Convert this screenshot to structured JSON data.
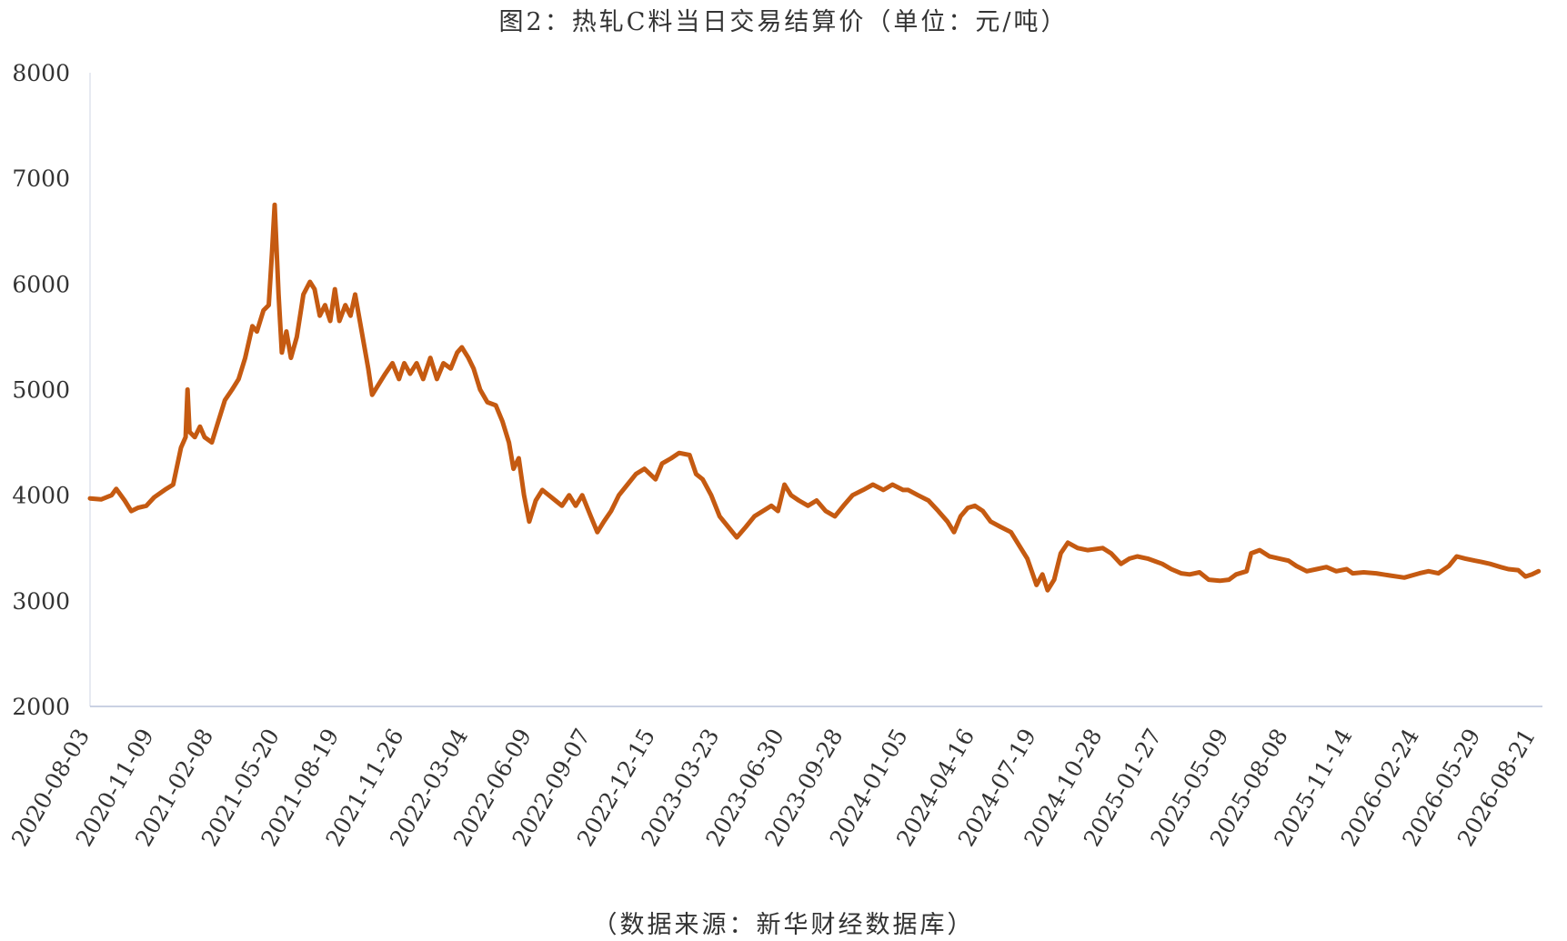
{
  "chart_data": {
    "type": "line",
    "title": "图2：热轧C料当日交易结算价（单位：元/吨）",
    "source": "（数据来源：新华财经数据库）",
    "ylim": [
      2000,
      8000
    ],
    "yticks": [
      "8000",
      "7000",
      "6000",
      "5000",
      "4000",
      "3000",
      "2000"
    ],
    "xlim": [
      "2020-08-03",
      "2026-08-31"
    ],
    "xticks": [
      "2020-08-03",
      "2020-11-09",
      "2021-02-08",
      "2021-05-20",
      "2021-08-19",
      "2021-11-26",
      "2022-03-04",
      "2022-06-09",
      "2022-09-07",
      "2022-12-15",
      "2023-03-23",
      "2023-06-30",
      "2023-09-28",
      "2024-01-05",
      "2024-04-16",
      "2024-07-19",
      "2024-10-28",
      "2025-01-27",
      "2025-05-09",
      "2025-08-08",
      "2025-11-14",
      "2026-02-24",
      "2026-05-29",
      "2026-08-21"
    ],
    "grid": false,
    "series_color": "#C55A11",
    "series": [
      {
        "points": [
          [
            "2020-08-03",
            3970
          ],
          [
            "2020-08-20",
            3960
          ],
          [
            "2020-09-05",
            4000
          ],
          [
            "2020-09-12",
            4060
          ],
          [
            "2020-09-25",
            3950
          ],
          [
            "2020-10-05",
            3850
          ],
          [
            "2020-10-15",
            3880
          ],
          [
            "2020-10-28",
            3900
          ],
          [
            "2020-11-09",
            3980
          ],
          [
            "2020-11-25",
            4050
          ],
          [
            "2020-12-08",
            4100
          ],
          [
            "2020-12-20",
            4450
          ],
          [
            "2020-12-27",
            4550
          ],
          [
            "2020-12-30",
            5000
          ],
          [
            "2021-01-02",
            4600
          ],
          [
            "2021-01-10",
            4550
          ],
          [
            "2021-01-18",
            4650
          ],
          [
            "2021-01-25",
            4550
          ],
          [
            "2021-02-05",
            4500
          ],
          [
            "2021-02-15",
            4700
          ],
          [
            "2021-02-25",
            4900
          ],
          [
            "2021-03-08",
            5000
          ],
          [
            "2021-03-18",
            5100
          ],
          [
            "2021-03-28",
            5300
          ],
          [
            "2021-04-08",
            5600
          ],
          [
            "2021-04-15",
            5550
          ],
          [
            "2021-04-25",
            5750
          ],
          [
            "2021-05-03",
            5800
          ],
          [
            "2021-05-08",
            6300
          ],
          [
            "2021-05-12",
            6750
          ],
          [
            "2021-05-18",
            5900
          ],
          [
            "2021-05-23",
            5350
          ],
          [
            "2021-05-30",
            5550
          ],
          [
            "2021-06-06",
            5300
          ],
          [
            "2021-06-15",
            5500
          ],
          [
            "2021-06-25",
            5900
          ],
          [
            "2021-07-05",
            6020
          ],
          [
            "2021-07-12",
            5950
          ],
          [
            "2021-07-20",
            5700
          ],
          [
            "2021-07-28",
            5800
          ],
          [
            "2021-08-05",
            5650
          ],
          [
            "2021-08-12",
            5950
          ],
          [
            "2021-08-19",
            5650
          ],
          [
            "2021-08-28",
            5800
          ],
          [
            "2021-09-05",
            5700
          ],
          [
            "2021-09-12",
            5900
          ],
          [
            "2021-09-22",
            5550
          ],
          [
            "2021-10-02",
            5200
          ],
          [
            "2021-10-08",
            4950
          ],
          [
            "2021-10-18",
            5050
          ],
          [
            "2021-10-28",
            5150
          ],
          [
            "2021-11-08",
            5250
          ],
          [
            "2021-11-18",
            5100
          ],
          [
            "2021-11-26",
            5250
          ],
          [
            "2021-12-05",
            5150
          ],
          [
            "2021-12-15",
            5250
          ],
          [
            "2021-12-25",
            5100
          ],
          [
            "2022-01-05",
            5300
          ],
          [
            "2022-01-15",
            5100
          ],
          [
            "2022-01-25",
            5250
          ],
          [
            "2022-02-05",
            5200
          ],
          [
            "2022-02-15",
            5350
          ],
          [
            "2022-02-22",
            5400
          ],
          [
            "2022-03-04",
            5300
          ],
          [
            "2022-03-12",
            5200
          ],
          [
            "2022-03-22",
            5000
          ],
          [
            "2022-04-02",
            4880
          ],
          [
            "2022-04-15",
            4850
          ],
          [
            "2022-04-25",
            4700
          ],
          [
            "2022-05-05",
            4500
          ],
          [
            "2022-05-12",
            4250
          ],
          [
            "2022-05-20",
            4350
          ],
          [
            "2022-05-28",
            4000
          ],
          [
            "2022-06-05",
            3750
          ],
          [
            "2022-06-15",
            3950
          ],
          [
            "2022-06-25",
            4050
          ],
          [
            "2022-07-05",
            4000
          ],
          [
            "2022-07-15",
            3950
          ],
          [
            "2022-07-25",
            3900
          ],
          [
            "2022-08-05",
            4000
          ],
          [
            "2022-08-15",
            3900
          ],
          [
            "2022-08-25",
            4000
          ],
          [
            "2022-09-07",
            3800
          ],
          [
            "2022-09-17",
            3650
          ],
          [
            "2022-09-27",
            3750
          ],
          [
            "2022-10-08",
            3850
          ],
          [
            "2022-10-20",
            4000
          ],
          [
            "2022-11-02",
            4100
          ],
          [
            "2022-11-15",
            4200
          ],
          [
            "2022-11-28",
            4250
          ],
          [
            "2022-12-15",
            4150
          ],
          [
            "2022-12-25",
            4300
          ],
          [
            "2023-01-08",
            4350
          ],
          [
            "2023-01-20",
            4400
          ],
          [
            "2023-02-05",
            4380
          ],
          [
            "2023-02-15",
            4200
          ],
          [
            "2023-02-25",
            4150
          ],
          [
            "2023-03-10",
            4000
          ],
          [
            "2023-03-23",
            3800
          ],
          [
            "2023-04-05",
            3700
          ],
          [
            "2023-04-18",
            3600
          ],
          [
            "2023-05-02",
            3700
          ],
          [
            "2023-05-15",
            3800
          ],
          [
            "2023-05-28",
            3850
          ],
          [
            "2023-06-10",
            3900
          ],
          [
            "2023-06-20",
            3850
          ],
          [
            "2023-06-30",
            4100
          ],
          [
            "2023-07-10",
            4000
          ],
          [
            "2023-07-22",
            3950
          ],
          [
            "2023-08-05",
            3900
          ],
          [
            "2023-08-18",
            3950
          ],
          [
            "2023-09-01",
            3850
          ],
          [
            "2023-09-15",
            3800
          ],
          [
            "2023-09-28",
            3900
          ],
          [
            "2023-10-12",
            4000
          ],
          [
            "2023-10-28",
            4050
          ],
          [
            "2023-11-12",
            4100
          ],
          [
            "2023-11-28",
            4050
          ],
          [
            "2023-12-12",
            4100
          ],
          [
            "2023-12-28",
            4050
          ],
          [
            "2024-01-05",
            4050
          ],
          [
            "2024-01-20",
            4000
          ],
          [
            "2024-02-05",
            3950
          ],
          [
            "2024-02-20",
            3850
          ],
          [
            "2024-03-05",
            3750
          ],
          [
            "2024-03-15",
            3650
          ],
          [
            "2024-03-25",
            3800
          ],
          [
            "2024-04-05",
            3880
          ],
          [
            "2024-04-16",
            3900
          ],
          [
            "2024-04-28",
            3850
          ],
          [
            "2024-05-10",
            3750
          ],
          [
            "2024-05-25",
            3700
          ],
          [
            "2024-06-10",
            3650
          ],
          [
            "2024-06-25",
            3500
          ],
          [
            "2024-07-05",
            3400
          ],
          [
            "2024-07-19",
            3150
          ],
          [
            "2024-07-28",
            3250
          ],
          [
            "2024-08-05",
            3100
          ],
          [
            "2024-08-15",
            3200
          ],
          [
            "2024-08-25",
            3450
          ],
          [
            "2024-09-05",
            3550
          ],
          [
            "2024-09-20",
            3500
          ],
          [
            "2024-10-05",
            3480
          ],
          [
            "2024-10-28",
            3500
          ],
          [
            "2024-11-10",
            3450
          ],
          [
            "2024-11-25",
            3350
          ],
          [
            "2024-12-08",
            3400
          ],
          [
            "2024-12-20",
            3420
          ],
          [
            "2025-01-05",
            3400
          ],
          [
            "2025-01-27",
            3350
          ],
          [
            "2025-02-10",
            3300
          ],
          [
            "2025-02-25",
            3260
          ],
          [
            "2025-03-10",
            3250
          ],
          [
            "2025-03-25",
            3270
          ],
          [
            "2025-04-08",
            3200
          ],
          [
            "2025-04-25",
            3190
          ],
          [
            "2025-05-09",
            3200
          ],
          [
            "2025-05-20",
            3250
          ],
          [
            "2025-06-05",
            3280
          ],
          [
            "2025-06-12",
            3450
          ],
          [
            "2025-06-25",
            3480
          ],
          [
            "2025-07-10",
            3420
          ],
          [
            "2025-07-25",
            3400
          ],
          [
            "2025-08-08",
            3380
          ],
          [
            "2025-08-20",
            3330
          ],
          [
            "2025-09-05",
            3280
          ],
          [
            "2025-09-20",
            3300
          ],
          [
            "2025-10-05",
            3320
          ],
          [
            "2025-10-20",
            3280
          ],
          [
            "2025-11-05",
            3300
          ],
          [
            "2025-11-14",
            3260
          ],
          [
            "2025-12-01",
            3270
          ],
          [
            "2025-12-20",
            3260
          ],
          [
            "2026-01-10",
            3240
          ],
          [
            "2026-02-01",
            3220
          ],
          [
            "2026-02-24",
            3260
          ],
          [
            "2026-03-10",
            3280
          ],
          [
            "2026-03-25",
            3260
          ],
          [
            "2026-04-10",
            3330
          ],
          [
            "2026-04-22",
            3420
          ],
          [
            "2026-05-05",
            3400
          ],
          [
            "2026-05-20",
            3380
          ],
          [
            "2026-05-29",
            3370
          ],
          [
            "2026-06-12",
            3350
          ],
          [
            "2026-06-28",
            3320
          ],
          [
            "2026-07-10",
            3300
          ],
          [
            "2026-07-25",
            3290
          ],
          [
            "2026-08-05",
            3230
          ],
          [
            "2026-08-15",
            3250
          ],
          [
            "2026-08-25",
            3280
          ]
        ]
      }
    ]
  }
}
